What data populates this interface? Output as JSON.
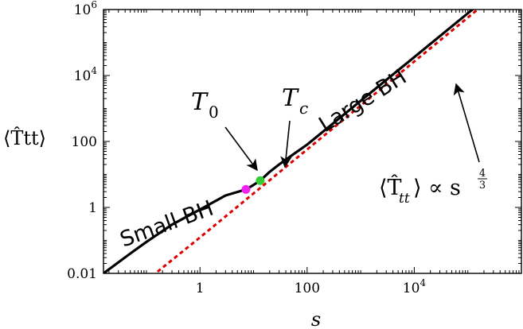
{
  "chart_data": {
    "type": "line",
    "x_scale": "log",
    "y_scale": "log",
    "xlim": [
      0.0158,
      1000000
    ],
    "ylim": [
      0.01,
      1000000
    ],
    "xlabel": "s",
    "ylabel": "⟨T̂tt⟩",
    "x_ticks": [
      {
        "value": 1,
        "label": "1"
      },
      {
        "value": 100,
        "label": "100"
      },
      {
        "value": 10000,
        "label": "10",
        "exp": "4"
      }
    ],
    "y_ticks": [
      {
        "value": 0.01,
        "label": "0.01"
      },
      {
        "value": 1,
        "label": "1"
      },
      {
        "value": 100,
        "label": "100"
      },
      {
        "value": 10000,
        "label": "10",
        "exp": "4"
      },
      {
        "value": 1000000,
        "label": "10",
        "exp": "6"
      }
    ],
    "series": [
      {
        "color": "#000000",
        "style": "solid",
        "x": [
          0.0158,
          0.05,
          0.1,
          0.3,
          1,
          3,
          7.2,
          10,
          13.3,
          20,
          30,
          60,
          100,
          1000,
          10000,
          100000,
          1000000
        ],
        "y": [
          0.01,
          0.04,
          0.09,
          0.3,
          0.86,
          2.3,
          3.5,
          4.8,
          6.5,
          12,
          20,
          45,
          80,
          1700,
          36000,
          770000,
          16000000
        ]
      },
      {
        "color": "#dd0000",
        "style": "dashed",
        "x": [
          0.1,
          1,
          10,
          100,
          1000,
          10000,
          100000,
          1000000
        ],
        "y": [
          0.006,
          0.123,
          2.65,
          57,
          1230,
          26500,
          570000,
          12300000
        ]
      }
    ],
    "points": [
      {
        "name": "T0",
        "x": 7.2,
        "y": 3.5,
        "color": "#ee22ee"
      },
      {
        "name": "Tc",
        "x": 13.3,
        "y": 6.5,
        "color": "#33cc33"
      }
    ],
    "annotations": {
      "small_bh": "Small BH",
      "large_bh": "Large BH",
      "t0_label": "T",
      "t0_sub": "0",
      "tc_label": "T",
      "tc_sub": "c",
      "scaling_lhs": "⟨T̂",
      "scaling_sub": "tt",
      "scaling_rhs": "⟩ ∝ s",
      "scaling_exp_num": "4",
      "scaling_exp_den": "3"
    }
  }
}
